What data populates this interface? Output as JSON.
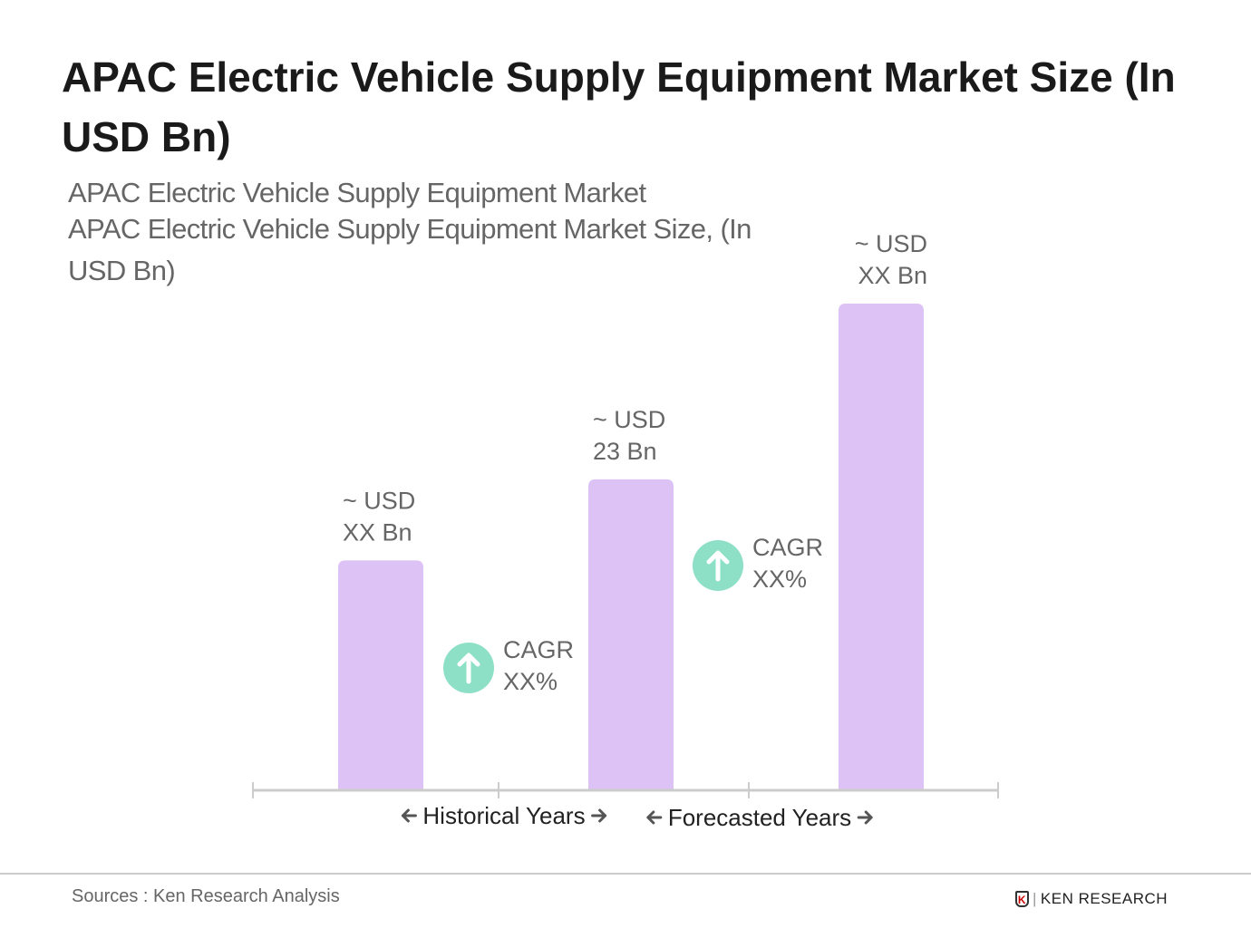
{
  "chart_data": {
    "type": "bar",
    "title": "APAC Electric Vehicle Supply Equipment Market Size (In USD Bn)",
    "subtitle_lines": [
      "APAC Electric Vehicle Supply Equipment Market",
      "APAC Electric Vehicle Supply Equipment Market Size, (In",
      "USD Bn)"
    ],
    "values": [
      17,
      23,
      36
    ],
    "data_labels": [
      [
        "~ USD",
        "XX Bn"
      ],
      [
        "~ USD",
        "23 Bn"
      ],
      [
        "~ USD",
        "XX Bn"
      ]
    ],
    "cagr_labels": [
      [
        "CAGR",
        "XX%"
      ],
      [
        "CAGR",
        "XX%"
      ]
    ],
    "period_labels": [
      "Historical Years",
      "Forecasted Years"
    ],
    "ylim": [
      0,
      36
    ],
    "grid": false,
    "colors": {
      "bar": "#dcc2f5",
      "cagr_circle": "#8de0c6",
      "axis": "#cccccc",
      "label": "#666666"
    }
  },
  "footer": {
    "source": "Sources : Ken Research Analysis",
    "logo": "KEN RESEARCH"
  }
}
